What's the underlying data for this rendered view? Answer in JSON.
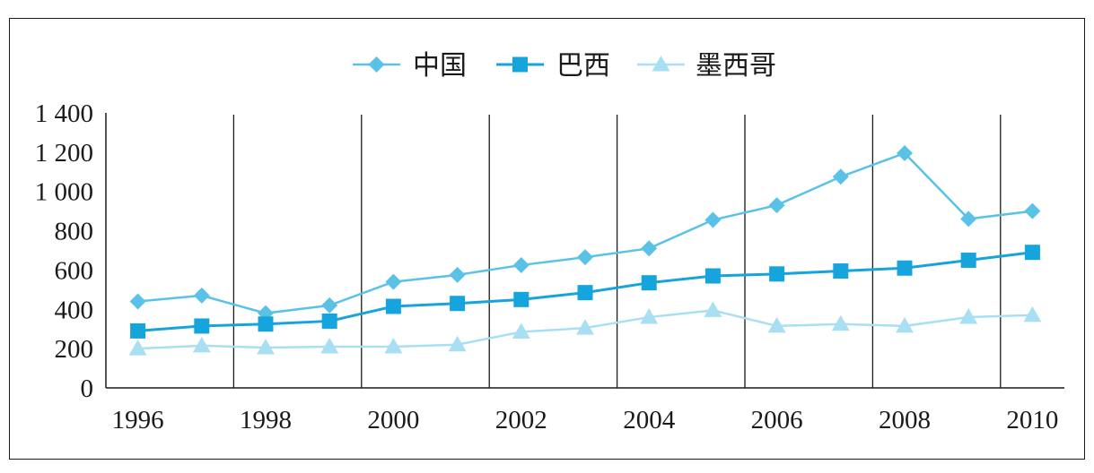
{
  "chart_data": {
    "type": "line",
    "title": "",
    "xlabel": "",
    "ylabel": "",
    "x": [
      1996,
      1997,
      1998,
      1999,
      2000,
      2001,
      2002,
      2003,
      2004,
      2005,
      2006,
      2007,
      2008,
      2009,
      2010
    ],
    "x_tick_labels": [
      "1996",
      "1998",
      "2000",
      "2002",
      "2004",
      "2006",
      "2008",
      "2010"
    ],
    "y_tick_labels": [
      "0",
      "200",
      "400",
      "600",
      "800",
      "1 000",
      "1 200",
      "1 400"
    ],
    "ylim": [
      0,
      1400
    ],
    "grid": "vertical lines every two years",
    "legend_position": "top-center",
    "series": [
      {
        "name": "中国",
        "marker": "diamond",
        "color": "#5bc2e7",
        "values": [
          440,
          470,
          380,
          420,
          540,
          575,
          625,
          665,
          710,
          855,
          930,
          1075,
          1195,
          860,
          900
        ]
      },
      {
        "name": "巴西",
        "marker": "square",
        "color": "#16a4dc",
        "values": [
          290,
          315,
          325,
          340,
          415,
          430,
          450,
          485,
          535,
          570,
          580,
          595,
          610,
          650,
          690
        ]
      },
      {
        "name": "墨西哥",
        "marker": "triangle",
        "color": "#a9dff2",
        "values": [
          200,
          215,
          205,
          210,
          210,
          220,
          285,
          305,
          360,
          395,
          315,
          325,
          315,
          360,
          370
        ]
      }
    ]
  }
}
